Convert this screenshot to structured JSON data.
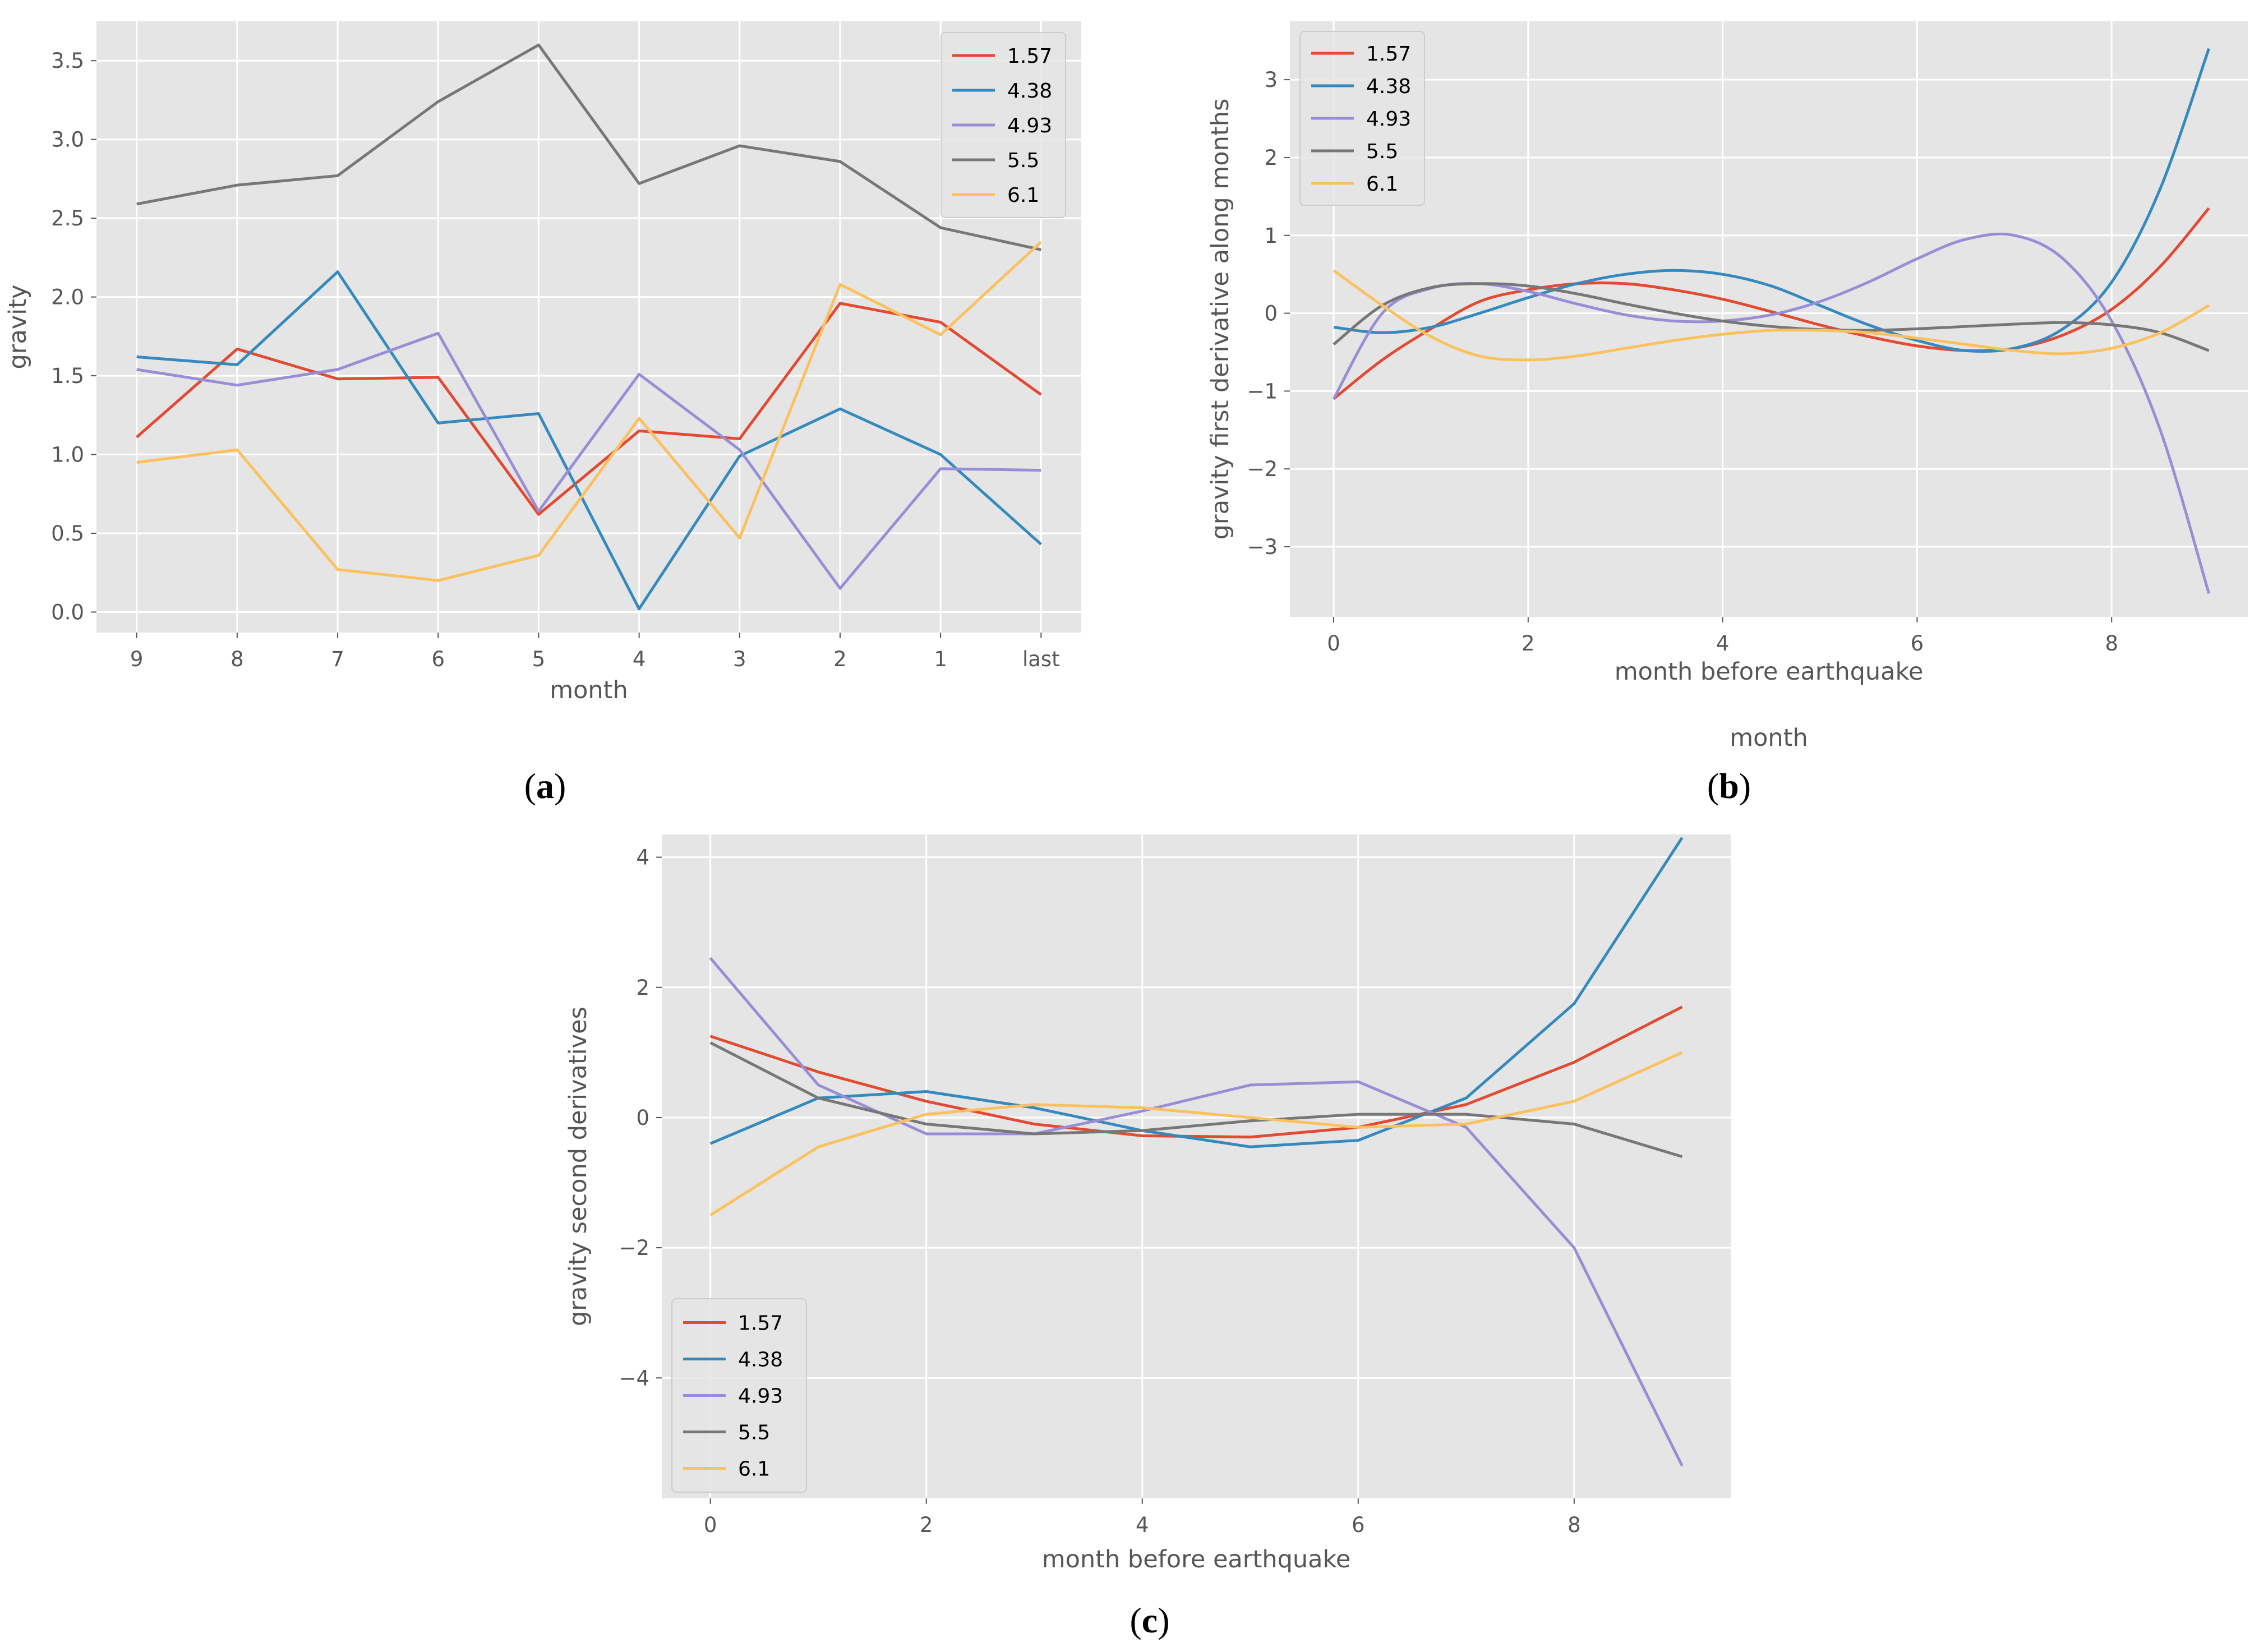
{
  "colors": {
    "background": "#e5e5e5",
    "grid": "#ffffff",
    "series": [
      "#e24a33",
      "#348abd",
      "#988ed5",
      "#777777",
      "#fbc15e"
    ]
  },
  "captions": {
    "a": "a",
    "b": "b",
    "c": "c"
  },
  "chart_data": [
    {
      "id": "a",
      "type": "line",
      "title": "",
      "xlabel": "month",
      "ylabel": "gravity",
      "categories": [
        "9",
        "8",
        "7",
        "6",
        "5",
        "4",
        "3",
        "2",
        "1",
        "last"
      ],
      "xlim": [
        -0.4,
        9.4
      ],
      "ylim": [
        -0.13,
        3.75
      ],
      "yticks": [
        0.0,
        0.5,
        1.0,
        1.5,
        2.0,
        2.5,
        3.0,
        3.5
      ],
      "ytick_labels": [
        "0.0",
        "0.5",
        "1.0",
        "1.5",
        "2.0",
        "2.5",
        "3.0",
        "3.5"
      ],
      "grid": true,
      "legend": "top-right",
      "series": [
        {
          "name": "1.57",
          "values": [
            1.11,
            1.67,
            1.48,
            1.49,
            0.62,
            1.15,
            1.1,
            1.96,
            1.84,
            1.38
          ]
        },
        {
          "name": "4.38",
          "values": [
            1.62,
            1.57,
            2.16,
            1.2,
            1.26,
            0.02,
            0.99,
            1.29,
            1.0,
            0.43
          ]
        },
        {
          "name": "4.93",
          "values": [
            1.54,
            1.44,
            1.54,
            1.77,
            0.64,
            1.51,
            1.03,
            0.15,
            0.91,
            0.9
          ]
        },
        {
          "name": "5.5",
          "values": [
            2.59,
            2.71,
            2.77,
            3.24,
            3.6,
            2.72,
            2.96,
            2.86,
            2.44,
            2.3
          ]
        },
        {
          "name": "6.1",
          "values": [
            0.95,
            1.03,
            0.27,
            0.2,
            0.36,
            1.23,
            0.47,
            2.08,
            1.76,
            2.35
          ]
        }
      ]
    },
    {
      "id": "b",
      "type": "line",
      "title": "",
      "xlabel": "month before earthquake",
      "xlabel2": "month",
      "ylabel": "gravity first derivative along months",
      "xlim": [
        -0.45,
        9.4
      ],
      "ylim": [
        -3.9,
        3.75
      ],
      "xticks": [
        0,
        2,
        4,
        6,
        8
      ],
      "xtick_labels": [
        "0",
        "2",
        "4",
        "6",
        "8"
      ],
      "yticks": [
        -3,
        -2,
        -1,
        0,
        1,
        2,
        3
      ],
      "ytick_labels": [
        "−3",
        "−2",
        "−1",
        "0",
        "1",
        "2",
        "3"
      ],
      "grid": true,
      "legend": "top-left",
      "series": [
        {
          "name": "1.57",
          "x": [
            0,
            0.5,
            1,
            1.5,
            2,
            2.5,
            3,
            3.5,
            4,
            4.5,
            5,
            5.5,
            6,
            6.5,
            7,
            7.5,
            8,
            8.5,
            9
          ],
          "values": [
            -1.1,
            -0.6,
            -0.2,
            0.15,
            0.3,
            0.38,
            0.38,
            0.3,
            0.18,
            0.02,
            -0.15,
            -0.3,
            -0.42,
            -0.48,
            -0.45,
            -0.28,
            0.05,
            0.6,
            1.35
          ]
        },
        {
          "name": "4.38",
          "x": [
            0,
            0.5,
            1,
            1.5,
            2,
            2.5,
            3,
            3.5,
            4,
            4.5,
            5,
            5.5,
            6,
            6.5,
            7,
            7.5,
            8,
            8.5,
            9
          ],
          "values": [
            -0.18,
            -0.25,
            -0.18,
            0.0,
            0.2,
            0.38,
            0.5,
            0.55,
            0.5,
            0.35,
            0.1,
            -0.15,
            -0.35,
            -0.48,
            -0.45,
            -0.2,
            0.4,
            1.6,
            3.4
          ]
        },
        {
          "name": "4.93",
          "x": [
            0,
            0.5,
            1,
            1.5,
            2,
            2.5,
            3,
            3.5,
            4,
            4.5,
            5,
            5.5,
            6,
            6.5,
            7,
            7.5,
            8,
            8.5,
            9
          ],
          "values": [
            -1.1,
            0.0,
            0.32,
            0.38,
            0.28,
            0.12,
            -0.02,
            -0.1,
            -0.1,
            -0.02,
            0.15,
            0.4,
            0.7,
            0.95,
            1.0,
            0.7,
            -0.1,
            -1.5,
            -3.6
          ]
        },
        {
          "name": "5.5",
          "x": [
            0,
            0.5,
            1,
            1.5,
            2,
            2.5,
            3,
            3.5,
            4,
            4.5,
            5,
            5.5,
            6,
            6.5,
            7,
            7.5,
            8,
            8.5,
            9
          ],
          "values": [
            -0.4,
            0.1,
            0.33,
            0.38,
            0.35,
            0.25,
            0.12,
            0.0,
            -0.1,
            -0.17,
            -0.21,
            -0.22,
            -0.2,
            -0.17,
            -0.14,
            -0.12,
            -0.15,
            -0.25,
            -0.48
          ]
        },
        {
          "name": "6.1",
          "x": [
            0,
            0.5,
            1,
            1.5,
            2,
            2.5,
            3,
            3.5,
            4,
            4.5,
            5,
            5.5,
            6,
            6.5,
            7,
            7.5,
            8,
            8.5,
            9
          ],
          "values": [
            0.55,
            0.1,
            -0.3,
            -0.55,
            -0.6,
            -0.55,
            -0.45,
            -0.35,
            -0.27,
            -0.22,
            -0.22,
            -0.25,
            -0.32,
            -0.4,
            -0.48,
            -0.52,
            -0.45,
            -0.25,
            0.1
          ]
        }
      ]
    },
    {
      "id": "c",
      "type": "line",
      "title": "",
      "xlabel": "month before earthquake",
      "ylabel": "gravity second derivatives",
      "x": [
        0,
        1,
        2,
        3,
        4,
        5,
        6,
        7,
        8,
        9
      ],
      "xlim": [
        -0.45,
        9.45
      ],
      "ylim": [
        -5.85,
        4.35
      ],
      "xticks": [
        0,
        2,
        4,
        6,
        8
      ],
      "xtick_labels": [
        "0",
        "2",
        "4",
        "6",
        "8"
      ],
      "yticks": [
        -4,
        -2,
        0,
        2,
        4
      ],
      "ytick_labels": [
        "−4",
        "−2",
        "0",
        "2",
        "4"
      ],
      "grid": true,
      "legend": "bottom-left",
      "series": [
        {
          "name": "1.57",
          "values": [
            1.25,
            0.7,
            0.25,
            -0.1,
            -0.28,
            -0.3,
            -0.15,
            0.2,
            0.85,
            1.7
          ]
        },
        {
          "name": "4.38",
          "values": [
            -0.4,
            0.3,
            0.4,
            0.15,
            -0.2,
            -0.45,
            -0.35,
            0.3,
            1.75,
            4.3
          ]
        },
        {
          "name": "4.93",
          "values": [
            2.45,
            0.5,
            -0.25,
            -0.25,
            0.1,
            0.5,
            0.55,
            -0.15,
            -2.0,
            -5.35
          ]
        },
        {
          "name": "5.5",
          "values": [
            1.15,
            0.3,
            -0.1,
            -0.25,
            -0.2,
            -0.05,
            0.05,
            0.05,
            -0.1,
            -0.6
          ]
        },
        {
          "name": "6.1",
          "values": [
            -1.5,
            -0.45,
            0.05,
            0.2,
            0.15,
            0.0,
            -0.15,
            -0.1,
            0.25,
            1.0
          ]
        }
      ]
    }
  ]
}
